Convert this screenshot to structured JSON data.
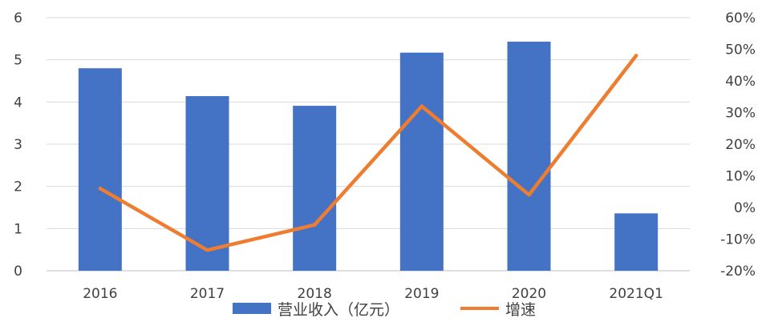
{
  "chart_data": {
    "type": "bar+line",
    "categories": [
      "2016",
      "2017",
      "2018",
      "2019",
      "2020",
      "2021Q1"
    ],
    "series": [
      {
        "name": "营业收入（亿元）",
        "type": "bar",
        "axis": "left",
        "color": "#4472C4",
        "values": [
          4.8,
          4.14,
          3.91,
          5.17,
          5.43,
          1.36
        ]
      },
      {
        "name": "增速",
        "type": "line",
        "axis": "right",
        "color": "#ED7D31",
        "values": [
          6,
          -13.5,
          -5.5,
          32,
          4,
          48
        ]
      }
    ],
    "y_left": {
      "min": 0,
      "max": 6,
      "step": 1,
      "tick_labels": [
        "0",
        "1",
        "2",
        "3",
        "4",
        "5",
        "6"
      ]
    },
    "y_right": {
      "min": -20,
      "max": 60,
      "step": 10,
      "tick_labels": [
        "-20%",
        "-10%",
        "0%",
        "10%",
        "20%",
        "30%",
        "40%",
        "50%",
        "60%"
      ]
    },
    "gridlines": true,
    "legend_position": "bottom"
  }
}
